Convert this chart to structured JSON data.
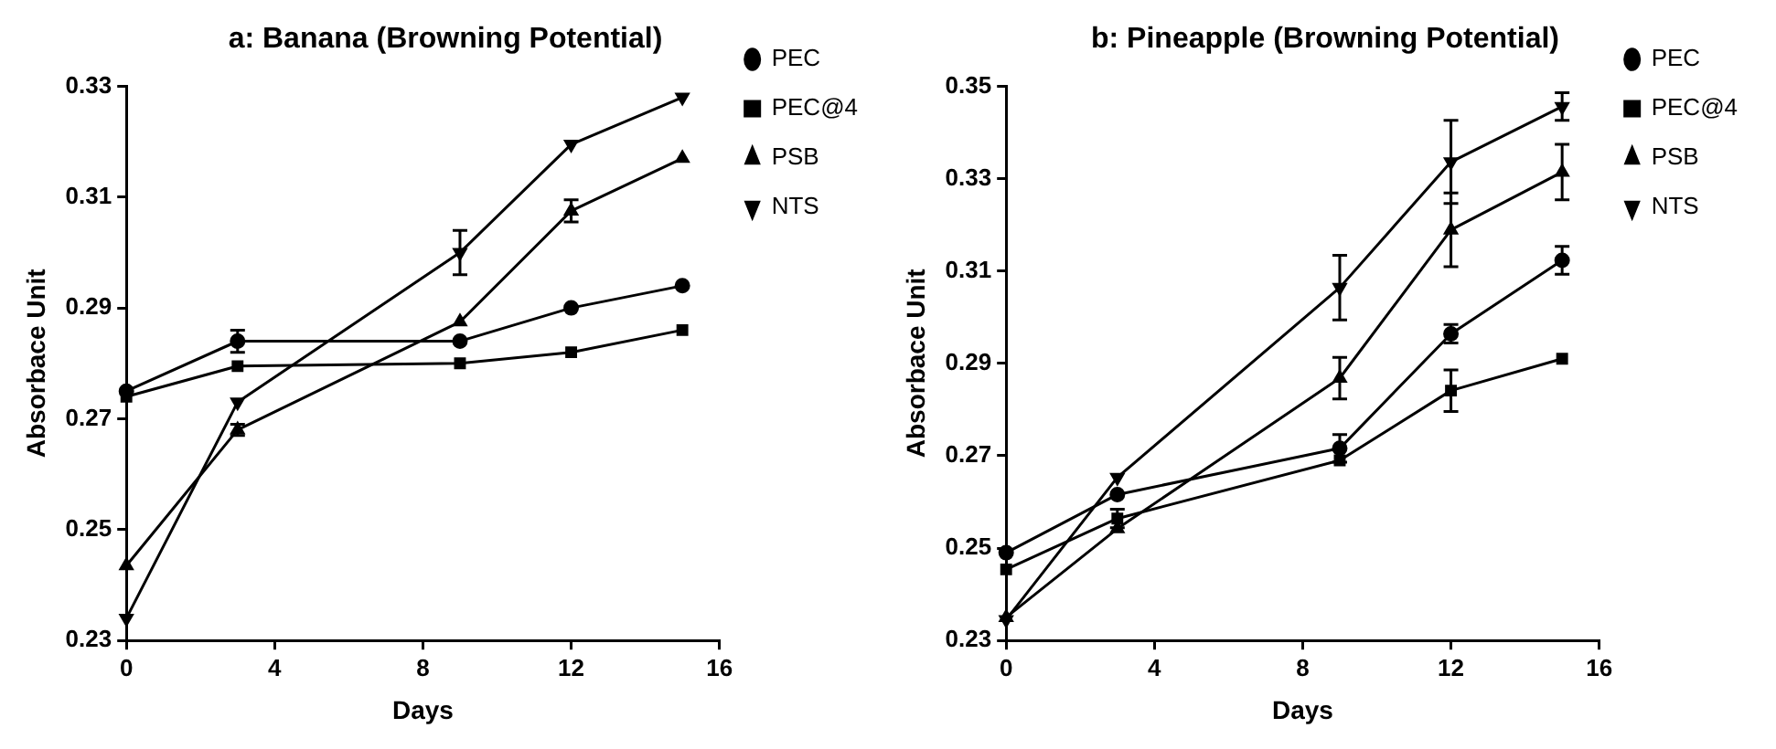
{
  "chart_data": [
    {
      "type": "line",
      "title": "a: Banana (Browning Potential)",
      "xlabel": "Days",
      "ylabel": "Absorbace Unit",
      "x": [
        0,
        3,
        9,
        12,
        15
      ],
      "xlim": [
        0,
        16
      ],
      "xticks": [
        0,
        4,
        8,
        12,
        16
      ],
      "ylim": [
        0.23,
        0.33
      ],
      "yticks": [
        0.23,
        0.25,
        0.27,
        0.29,
        0.31,
        0.33
      ],
      "grid": false,
      "legend": "right",
      "line_style": "solid",
      "series": [
        {
          "name": "PEC",
          "color": "#000000",
          "marker": "circle",
          "values": [
            0.275,
            0.284,
            0.284,
            0.29,
            0.294
          ],
          "errors": [
            null,
            0.002,
            null,
            null,
            null
          ]
        },
        {
          "name": "PEC@4",
          "color": "#000000",
          "marker": "square",
          "values": [
            0.274,
            0.2795,
            0.28,
            0.282,
            0.286
          ]
        },
        {
          "name": "PSB",
          "color": "#000000",
          "marker": "triangle",
          "values": [
            0.2435,
            0.268,
            0.2875,
            0.3075,
            0.317
          ],
          "errors": [
            null,
            0.001,
            null,
            0.002,
            null
          ]
        },
        {
          "name": "NTS",
          "color": "#000000",
          "marker": "triangle-down",
          "values": [
            0.234,
            0.273,
            0.3,
            0.3195,
            0.328
          ],
          "errors": [
            null,
            null,
            0.004,
            null,
            null
          ]
        }
      ]
    },
    {
      "type": "line",
      "title": "b: Pineapple (Browning Potential)",
      "xlabel": "Days",
      "ylabel": "Absorbace Unit",
      "x": [
        0,
        3,
        9,
        12,
        15
      ],
      "xlim": [
        0,
        16
      ],
      "xticks": [
        0,
        4,
        8,
        12,
        16
      ],
      "ylim": [
        0.23,
        0.35
      ],
      "yticks": [
        0.23,
        0.25,
        0.27,
        0.29,
        0.31,
        0.33,
        0.35
      ],
      "grid": false,
      "legend": "right",
      "line_style": "solid",
      "series": [
        {
          "name": "PEC",
          "color": "#000000",
          "marker": "circle",
          "values": [
            0.249,
            0.2616,
            0.2716,
            0.2964,
            0.3123
          ],
          "errors": [
            null,
            null,
            0.003,
            0.002,
            0.003
          ]
        },
        {
          "name": "PEC@4",
          "color": "#000000",
          "marker": "square",
          "values": [
            0.2454,
            0.2564,
            0.269,
            0.2841,
            0.291
          ],
          "errors": [
            null,
            0.002,
            null,
            0.0045,
            null
          ]
        },
        {
          "name": "PSB",
          "color": "#000000",
          "marker": "triangle",
          "values": [
            0.235,
            0.2542,
            0.2868,
            0.3189,
            0.3314
          ],
          "errors": [
            null,
            null,
            0.0045,
            0.008,
            0.006
          ]
        },
        {
          "name": "NTS",
          "color": "#000000",
          "marker": "triangle-down",
          "values": [
            0.2345,
            0.2653,
            0.3064,
            0.3336,
            0.3456
          ],
          "errors": [
            null,
            null,
            0.007,
            0.009,
            0.003
          ]
        }
      ]
    }
  ]
}
